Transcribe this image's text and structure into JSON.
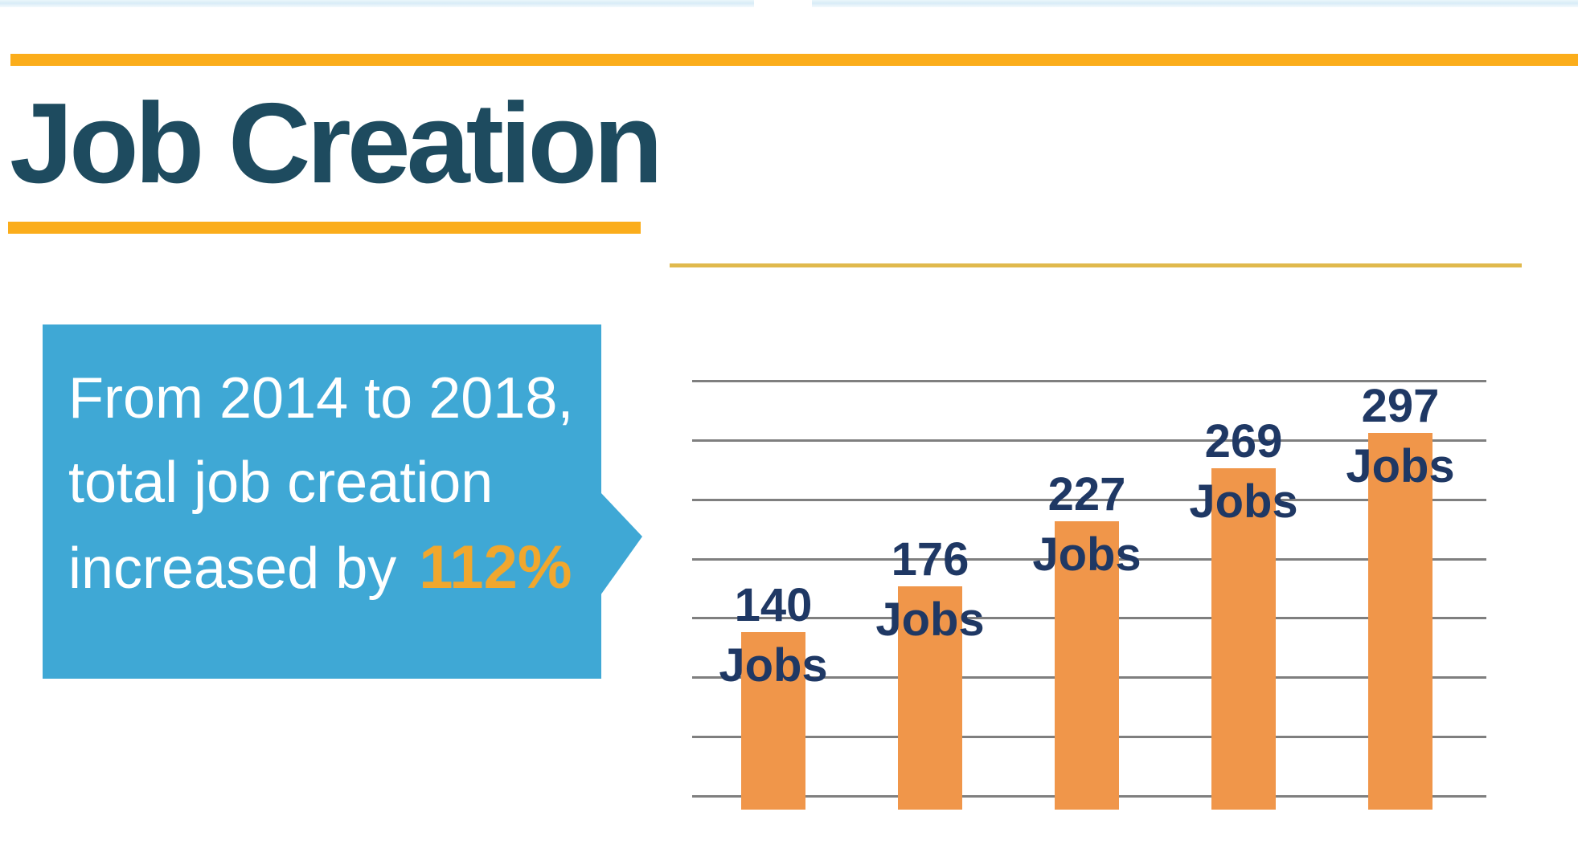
{
  "slide": {
    "title": "Job Creation",
    "colors": {
      "accent_amber": "#FBAD1B",
      "thin_gold_line": "#E0B94D",
      "title_color": "#1E4B5F",
      "top_strip": "#D8ECF7"
    }
  },
  "callout": {
    "bg": "#3FA8D5",
    "text_color": "#FFFFFF",
    "line1": "From 2014 to 2018,",
    "line2": "total job creation",
    "line3": "increased by",
    "highlight": "112%",
    "highlight_color": "#F0A72E"
  },
  "chart_data": {
    "type": "bar",
    "values": [
      140,
      176,
      227,
      269,
      297
    ],
    "labels": [
      "140 Jobs",
      "176 Jobs",
      "227 Jobs",
      "269 Jobs",
      "297 Jobs"
    ],
    "label_suffix": "Jobs",
    "title": "",
    "xlabel": "",
    "ylabel": "",
    "ylim": [
      0,
      350
    ],
    "grid_step": 50,
    "gridline_count": 8,
    "grid_on": true,
    "legend": "none",
    "bar_color": "#F0964A",
    "label_color": "#1F3864",
    "gridline_color": "#7F7F7F"
  }
}
